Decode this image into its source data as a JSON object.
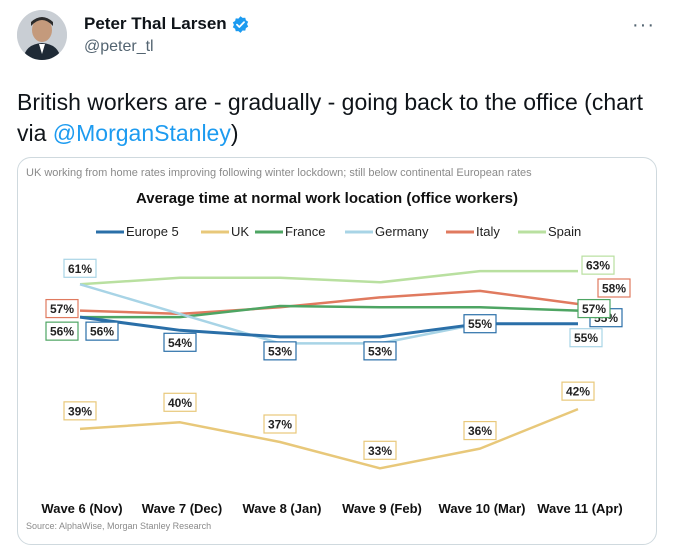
{
  "tweet": {
    "author_name": "Peter Thal Larsen",
    "handle": "@peter_tl",
    "more_label": "···",
    "text": "British workers are - gradually - going back to the office (chart via ",
    "mention": "@MorganStanley",
    "text_end": ")"
  },
  "colors": {
    "verified": "#1d9bf0",
    "link": "#1d9bf0"
  },
  "chart_data": {
    "type": "line",
    "header": "UK working from home rates improving following winter lockdown; still below continental European rates",
    "title": "Average time at normal work location (office workers)",
    "source": "Source: AlphaWise, Morgan Stanley Research",
    "categories": [
      "Wave 6 (Nov)",
      "Wave 7 (Dec)",
      "Wave 8 (Jan)",
      "Wave 9 (Feb)",
      "Wave 10 (Mar)",
      "Wave 11 (Apr)"
    ],
    "ylim": [
      30,
      65
    ],
    "grid": false,
    "legend_position": "top",
    "series": [
      {
        "name": "Europe 5",
        "color": "#2a6fa8",
        "values": [
          56,
          54,
          53,
          53,
          55,
          55
        ],
        "labels": [
          "56%",
          "54%",
          "53%",
          "53%",
          "55%",
          "55%"
        ]
      },
      {
        "name": "UK",
        "color": "#e8c87a",
        "values": [
          39,
          40,
          37,
          33,
          36,
          42
        ],
        "labels": [
          "39%",
          "40%",
          "37%",
          "33%",
          "36%",
          "42%"
        ]
      },
      {
        "name": "France",
        "color": "#4ea563",
        "values": [
          56,
          56,
          57.7,
          57.5,
          57.5,
          57
        ],
        "labels": [
          "56%",
          "",
          "",
          "",
          "",
          "57%"
        ]
      },
      {
        "name": "Germany",
        "color": "#a8d4e6",
        "values": [
          61,
          56.5,
          52,
          52,
          55,
          55
        ],
        "labels": [
          "61%",
          "",
          "",
          "",
          "",
          "55%"
        ]
      },
      {
        "name": "Italy",
        "color": "#e07a5f",
        "values": [
          57,
          56.5,
          57.5,
          59,
          60,
          58
        ],
        "labels": [
          "57%",
          "",
          "",
          "",
          "",
          "58%"
        ]
      },
      {
        "name": "Spain",
        "color": "#b9e0a0",
        "values": [
          61,
          62,
          62,
          61.3,
          63,
          63
        ],
        "labels": [
          "",
          "",
          "",
          "",
          "",
          "63%"
        ]
      }
    ]
  }
}
